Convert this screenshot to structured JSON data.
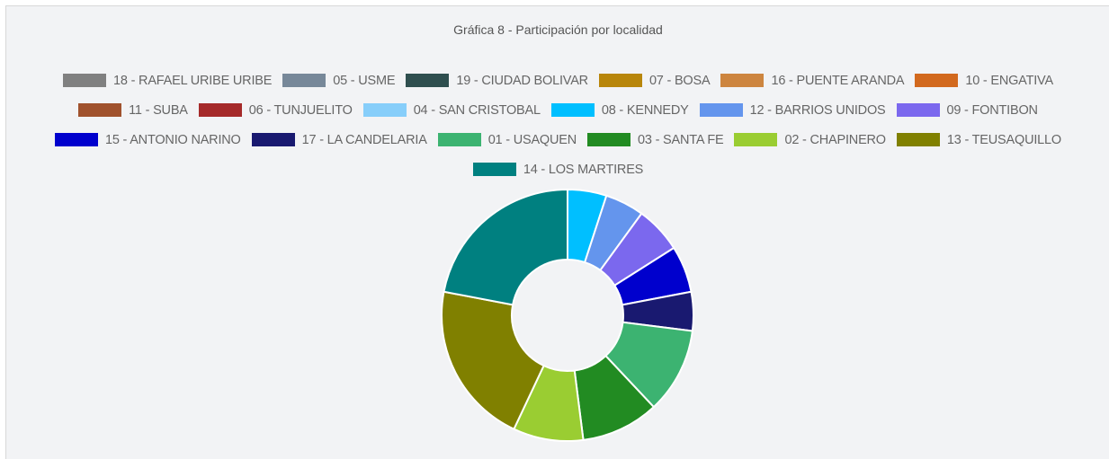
{
  "chart_data": {
    "type": "doughnut",
    "title": "Gráfica 8 - Participación por localidad",
    "categories": [
      "18 - RAFAEL URIBE URIBE",
      "05 - USME",
      "19 - CIUDAD BOLIVAR",
      "07 - BOSA",
      "16 - PUENTE ARANDA",
      "10 - ENGATIVA",
      "11 - SUBA",
      "06 - TUNJUELITO",
      "04 - SAN CRISTOBAL",
      "08 - KENNEDY",
      "12 - BARRIOS UNIDOS",
      "09 - FONTIBON",
      "15 - ANTONIO NARINO",
      "17 - LA CANDELARIA",
      "01 - USAQUEN",
      "03 - SANTA FE",
      "02 - CHAPINERO",
      "13 - TEUSAQUILLO",
      "14 - LOS MARTIRES"
    ],
    "values": [
      0,
      0,
      0,
      0,
      0,
      0,
      0,
      0,
      0,
      5,
      5,
      6,
      6,
      5,
      11,
      10,
      9,
      21,
      22
    ],
    "colors": [
      "#808080",
      "#778899",
      "#2f4f4f",
      "#b8860b",
      "#cd853f",
      "#d2691e",
      "#a0522d",
      "#a52a2a",
      "#87cefa",
      "#00bfff",
      "#6495ed",
      "#7b68ee",
      "#0000cd",
      "#191970",
      "#3cb371",
      "#228b22",
      "#9acd32",
      "#808000",
      "#008080"
    ],
    "legend": "top"
  }
}
